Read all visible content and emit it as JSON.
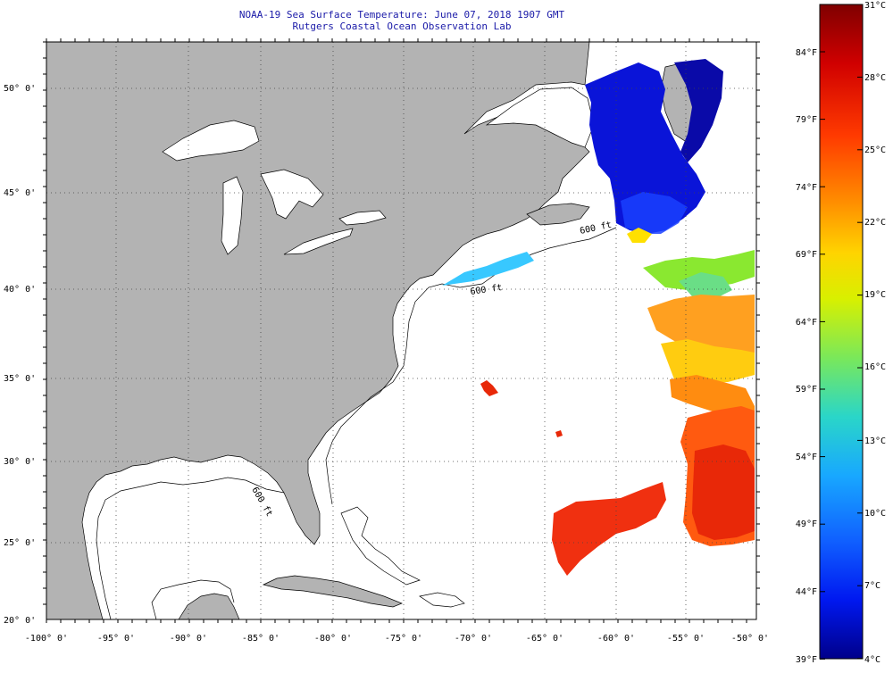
{
  "title": {
    "line1": "NOAA-19 Sea Surface Temperature:  June 07, 2018 1907 GMT",
    "line2": "Rutgers Coastal Ocean Observation Lab"
  },
  "axes": {
    "lon_labels": [
      "-100° 0'",
      "-95° 0'",
      "-90° 0'",
      "-85° 0'",
      "-80° 0'",
      "-75° 0'",
      "-70° 0'",
      "-65° 0'",
      "-60° 0'",
      "-55° 0'",
      "-50° 0'"
    ],
    "lat_labels": [
      "20° 0'",
      "25° 0'",
      "30° 0'",
      "35° 0'",
      "40° 0'",
      "45° 0'",
      "50° 0'"
    ],
    "isobath_labels": [
      "600 ft",
      "600 ft",
      "600 ft"
    ]
  },
  "colorbar": {
    "celsius": [
      "31°C",
      "28°C",
      "25°C",
      "22°C",
      "19°C",
      "16°C",
      "13°C",
      "10°C",
      "7°C",
      "4°C"
    ],
    "fahrenheit": [
      "84°F",
      "79°F",
      "74°F",
      "69°F",
      "64°F",
      "59°F",
      "54°F",
      "49°F",
      "44°F",
      "39°F"
    ],
    "gradient_stops": [
      "#7f0000",
      "#d00000",
      "#ff3a00",
      "#ff8c00",
      "#ffd400",
      "#d8f000",
      "#7ae85a",
      "#2ad6c8",
      "#18a8ff",
      "#1060ff",
      "#0018f0",
      "#00008a"
    ]
  },
  "colors": {
    "land": "#b3b3b3",
    "ocean": "#ffffff",
    "coast": "#000000",
    "title": "#1a1aa8"
  }
}
